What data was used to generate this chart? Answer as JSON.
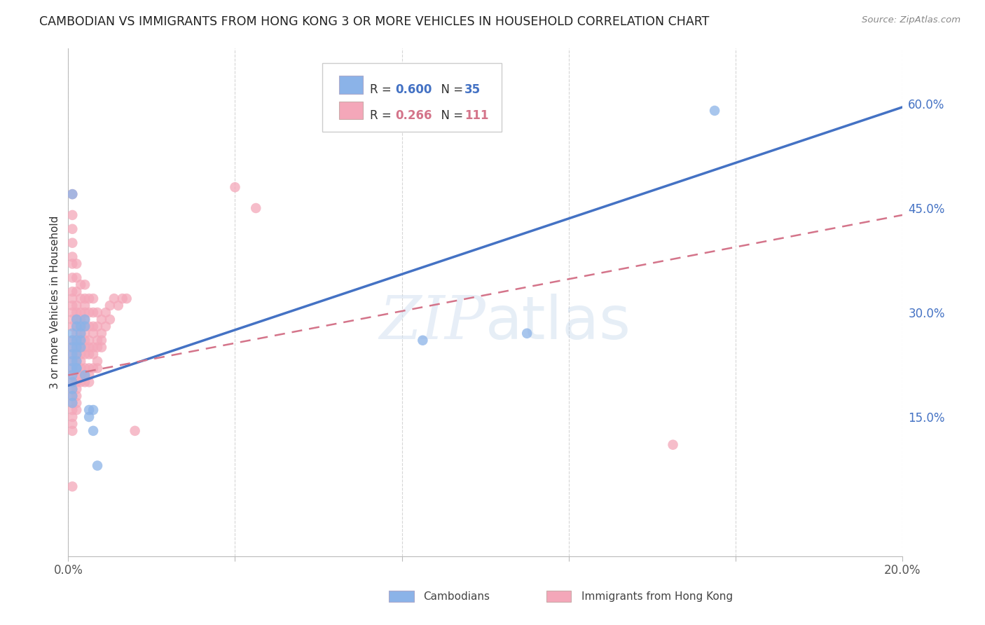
{
  "title": "CAMBODIAN VS IMMIGRANTS FROM HONG KONG 3 OR MORE VEHICLES IN HOUSEHOLD CORRELATION CHART",
  "source": "Source: ZipAtlas.com",
  "ylabel": "3 or more Vehicles in Household",
  "xmin": 0.0,
  "xmax": 0.2,
  "ymin": -0.05,
  "ymax": 0.68,
  "x_ticks": [
    0.0,
    0.04,
    0.08,
    0.12,
    0.16,
    0.2
  ],
  "x_tick_labels": [
    "0.0%",
    "",
    "",
    "",
    "",
    "20.0%"
  ],
  "y_ticks_right": [
    0.15,
    0.3,
    0.45,
    0.6
  ],
  "y_tick_labels_right": [
    "15.0%",
    "30.0%",
    "45.0%",
    "60.0%"
  ],
  "cambodian_color": "#8bb3e8",
  "hk_color": "#f4a7b9",
  "cambodian_R": 0.6,
  "cambodian_N": 35,
  "hk_R": 0.266,
  "hk_N": 111,
  "legend_label_1": "Cambodians",
  "legend_label_2": "Immigrants from Hong Kong",
  "watermark_zip": "ZIP",
  "watermark_atlas": "atlas",
  "blue_line_color": "#4472c4",
  "pink_line_color": "#d4748a",
  "cambodian_scatter": [
    [
      0.001,
      0.47
    ],
    [
      0.001,
      0.23
    ],
    [
      0.001,
      0.22
    ],
    [
      0.001,
      0.27
    ],
    [
      0.001,
      0.26
    ],
    [
      0.001,
      0.25
    ],
    [
      0.001,
      0.21
    ],
    [
      0.001,
      0.2
    ],
    [
      0.001,
      0.19
    ],
    [
      0.001,
      0.18
    ],
    [
      0.001,
      0.17
    ],
    [
      0.001,
      0.24
    ],
    [
      0.002,
      0.26
    ],
    [
      0.002,
      0.25
    ],
    [
      0.002,
      0.24
    ],
    [
      0.002,
      0.23
    ],
    [
      0.002,
      0.22
    ],
    [
      0.002,
      0.22
    ],
    [
      0.002,
      0.29
    ],
    [
      0.002,
      0.28
    ],
    [
      0.003,
      0.28
    ],
    [
      0.003,
      0.27
    ],
    [
      0.003,
      0.26
    ],
    [
      0.003,
      0.25
    ],
    [
      0.004,
      0.29
    ],
    [
      0.004,
      0.28
    ],
    [
      0.004,
      0.21
    ],
    [
      0.005,
      0.16
    ],
    [
      0.005,
      0.15
    ],
    [
      0.006,
      0.16
    ],
    [
      0.006,
      0.13
    ],
    [
      0.007,
      0.08
    ],
    [
      0.085,
      0.26
    ],
    [
      0.11,
      0.27
    ],
    [
      0.155,
      0.59
    ]
  ],
  "hk_scatter": [
    [
      0.001,
      0.47
    ],
    [
      0.001,
      0.44
    ],
    [
      0.001,
      0.42
    ],
    [
      0.001,
      0.4
    ],
    [
      0.001,
      0.38
    ],
    [
      0.001,
      0.37
    ],
    [
      0.001,
      0.35
    ],
    [
      0.001,
      0.33
    ],
    [
      0.001,
      0.32
    ],
    [
      0.001,
      0.31
    ],
    [
      0.001,
      0.3
    ],
    [
      0.001,
      0.29
    ],
    [
      0.001,
      0.28
    ],
    [
      0.001,
      0.26
    ],
    [
      0.001,
      0.25
    ],
    [
      0.001,
      0.24
    ],
    [
      0.001,
      0.23
    ],
    [
      0.001,
      0.22
    ],
    [
      0.001,
      0.21
    ],
    [
      0.001,
      0.2
    ],
    [
      0.001,
      0.19
    ],
    [
      0.001,
      0.18
    ],
    [
      0.001,
      0.17
    ],
    [
      0.001,
      0.16
    ],
    [
      0.001,
      0.15
    ],
    [
      0.001,
      0.14
    ],
    [
      0.001,
      0.13
    ],
    [
      0.001,
      0.05
    ],
    [
      0.002,
      0.37
    ],
    [
      0.002,
      0.35
    ],
    [
      0.002,
      0.33
    ],
    [
      0.002,
      0.31
    ],
    [
      0.002,
      0.3
    ],
    [
      0.002,
      0.29
    ],
    [
      0.002,
      0.28
    ],
    [
      0.002,
      0.27
    ],
    [
      0.002,
      0.26
    ],
    [
      0.002,
      0.25
    ],
    [
      0.002,
      0.24
    ],
    [
      0.002,
      0.23
    ],
    [
      0.002,
      0.22
    ],
    [
      0.002,
      0.21
    ],
    [
      0.002,
      0.2
    ],
    [
      0.002,
      0.19
    ],
    [
      0.002,
      0.18
    ],
    [
      0.002,
      0.17
    ],
    [
      0.002,
      0.16
    ],
    [
      0.003,
      0.34
    ],
    [
      0.003,
      0.32
    ],
    [
      0.003,
      0.3
    ],
    [
      0.003,
      0.29
    ],
    [
      0.003,
      0.28
    ],
    [
      0.003,
      0.27
    ],
    [
      0.003,
      0.26
    ],
    [
      0.003,
      0.25
    ],
    [
      0.003,
      0.24
    ],
    [
      0.003,
      0.23
    ],
    [
      0.003,
      0.22
    ],
    [
      0.003,
      0.21
    ],
    [
      0.003,
      0.2
    ],
    [
      0.004,
      0.34
    ],
    [
      0.004,
      0.32
    ],
    [
      0.004,
      0.31
    ],
    [
      0.004,
      0.3
    ],
    [
      0.004,
      0.29
    ],
    [
      0.004,
      0.28
    ],
    [
      0.004,
      0.27
    ],
    [
      0.004,
      0.26
    ],
    [
      0.004,
      0.25
    ],
    [
      0.004,
      0.24
    ],
    [
      0.004,
      0.22
    ],
    [
      0.004,
      0.21
    ],
    [
      0.004,
      0.2
    ],
    [
      0.005,
      0.32
    ],
    [
      0.005,
      0.3
    ],
    [
      0.005,
      0.28
    ],
    [
      0.005,
      0.26
    ],
    [
      0.005,
      0.25
    ],
    [
      0.005,
      0.24
    ],
    [
      0.005,
      0.22
    ],
    [
      0.005,
      0.21
    ],
    [
      0.005,
      0.2
    ],
    [
      0.006,
      0.32
    ],
    [
      0.006,
      0.3
    ],
    [
      0.006,
      0.28
    ],
    [
      0.006,
      0.27
    ],
    [
      0.006,
      0.25
    ],
    [
      0.006,
      0.24
    ],
    [
      0.006,
      0.22
    ],
    [
      0.007,
      0.3
    ],
    [
      0.007,
      0.28
    ],
    [
      0.007,
      0.26
    ],
    [
      0.007,
      0.25
    ],
    [
      0.007,
      0.23
    ],
    [
      0.007,
      0.22
    ],
    [
      0.008,
      0.29
    ],
    [
      0.008,
      0.27
    ],
    [
      0.008,
      0.26
    ],
    [
      0.008,
      0.25
    ],
    [
      0.009,
      0.3
    ],
    [
      0.009,
      0.28
    ],
    [
      0.01,
      0.31
    ],
    [
      0.01,
      0.29
    ],
    [
      0.011,
      0.32
    ],
    [
      0.012,
      0.31
    ],
    [
      0.013,
      0.32
    ],
    [
      0.014,
      0.32
    ],
    [
      0.016,
      0.13
    ],
    [
      0.04,
      0.48
    ],
    [
      0.045,
      0.45
    ],
    [
      0.145,
      0.11
    ]
  ]
}
